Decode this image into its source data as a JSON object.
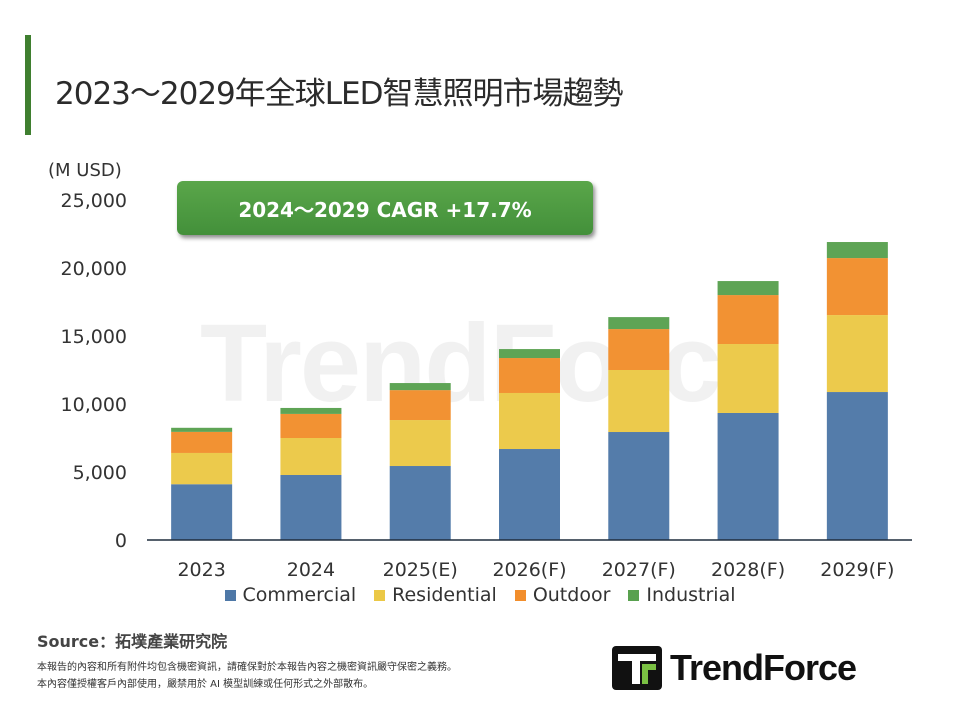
{
  "title": "2023～2029年全球LED智慧照明市場趨勢",
  "cagr_label": "2024～2029 CAGR +17.7%",
  "source": "Source：拓墣產業研究院",
  "disclaimer": [
    "本報告的內容和所有附件均包含機密資訊，請確保對於本報告內容之機密資訊嚴守保密之義務。",
    "本內容僅授權客戶內部使用，嚴禁用於 AI 模型訓練或任何形式之外部散布。"
  ],
  "logo_text": "TrendForce",
  "watermark": "TrendForce",
  "colors": {
    "accent": "#3f7f2f",
    "Commercial": "#4e78a7",
    "Residential": "#ebc846",
    "Outdoor": "#f28e2c",
    "Industrial": "#59a14f"
  },
  "chart_data": {
    "type": "bar",
    "stacked": true,
    "ylabel": "(M USD)",
    "ylim": [
      0,
      25000
    ],
    "yticks": [
      0,
      5000,
      10000,
      15000,
      20000,
      25000
    ],
    "ytick_labels": [
      "0",
      "5,000",
      "10,000",
      "15,000",
      "20,000",
      "25,000"
    ],
    "grid": false,
    "legend": "bottom",
    "categories": [
      "2023",
      "2024",
      "2025(E)",
      "2026(F)",
      "2027(F)",
      "2028(F)",
      "2029(F)"
    ],
    "series": [
      {
        "name": "Commercial",
        "values": [
          4100,
          4780,
          5440,
          6690,
          7940,
          9340,
          10880
        ]
      },
      {
        "name": "Residential",
        "values": [
          2300,
          2720,
          3380,
          4120,
          4560,
          5070,
          5660
        ]
      },
      {
        "name": "Outdoor",
        "values": [
          1550,
          1770,
          2200,
          2570,
          3010,
          3600,
          4190
        ]
      },
      {
        "name": "Industrial",
        "values": [
          300,
          440,
          520,
          660,
          880,
          1030,
          1180
        ]
      }
    ]
  }
}
